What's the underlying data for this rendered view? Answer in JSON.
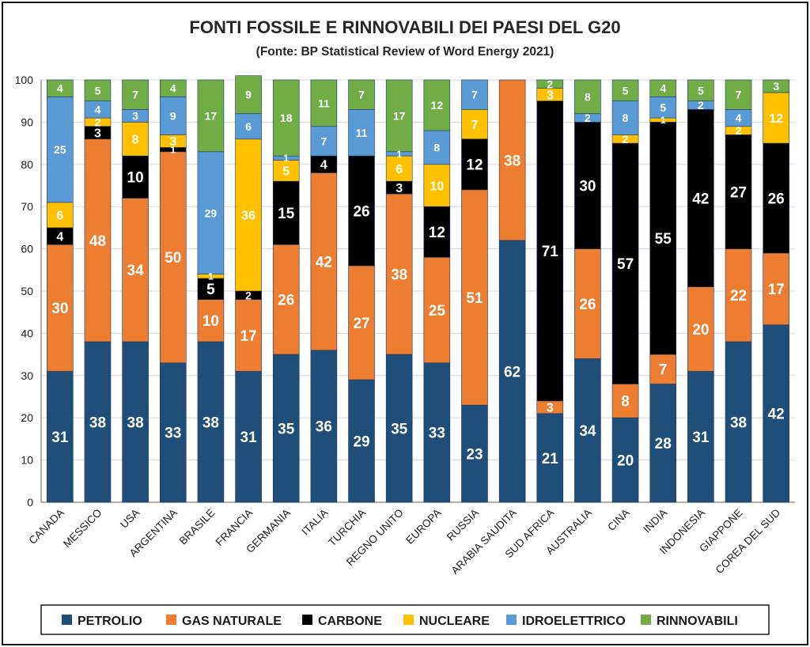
{
  "chart_data": {
    "type": "bar",
    "stacked": true,
    "title": "FONTI FOSSILE E RINNOVABILI DEI PAESI DEL G20",
    "subtitle": "(Fonte: BP Statistical Review of Word Energy 2021)",
    "ylim": [
      0,
      100
    ],
    "yticks": [
      0,
      10,
      20,
      30,
      40,
      50,
      60,
      70,
      80,
      90,
      100
    ],
    "grid": true,
    "legend_position": "bottom",
    "categories": [
      "CANADA",
      "MESSICO",
      "USA",
      "ARGENTINA",
      "BRASILE",
      "FRANCIA",
      "GERMANIA",
      "ITALIA",
      "TURCHIA",
      "REGNO UNITO",
      "EUROPA",
      "RUSSIA",
      "ARABIA SAUDITA",
      "SUD AFRICA",
      "AUSTRALIA",
      "CINA",
      "INDIA",
      "INDONESIA",
      "GIAPPONE",
      "COREA DEL SUD"
    ],
    "series": [
      {
        "name": "PETROLIO",
        "color": "#1f4e79",
        "values": [
          31,
          38,
          38,
          33,
          38,
          31,
          35,
          36,
          29,
          35,
          33,
          23,
          62,
          21,
          34,
          20,
          28,
          31,
          38,
          42
        ]
      },
      {
        "name": "GAS NATURALE",
        "color": "#ed7d31",
        "values": [
          30,
          48,
          34,
          50,
          10,
          17,
          26,
          42,
          27,
          38,
          25,
          51,
          38,
          3,
          26,
          8,
          7,
          20,
          22,
          17
        ]
      },
      {
        "name": "CARBONE",
        "color": "#000000",
        "values": [
          4,
          3,
          10,
          1,
          5,
          2,
          15,
          4,
          26,
          3,
          12,
          12,
          null,
          71,
          30,
          57,
          55,
          42,
          27,
          26
        ]
      },
      {
        "name": "NUCLEARE",
        "color": "#ffc000",
        "values": [
          6,
          2,
          8,
          3,
          1,
          36,
          5,
          null,
          null,
          6,
          10,
          7,
          null,
          3,
          null,
          2,
          1,
          null,
          2,
          12
        ]
      },
      {
        "name": "IDROELETTRICO",
        "color": "#5b9bd5",
        "values": [
          25,
          4,
          3,
          9,
          29,
          6,
          1,
          7,
          11,
          1,
          8,
          7,
          null,
          null,
          2,
          8,
          5,
          2,
          4,
          null
        ]
      },
      {
        "name": "RINNOVABILI",
        "color": "#70ad47",
        "values": [
          4,
          5,
          7,
          4,
          17,
          9,
          18,
          11,
          7,
          17,
          12,
          null,
          null,
          2,
          8,
          5,
          4,
          5,
          7,
          3
        ]
      }
    ],
    "axis_color": "#7f7f7f",
    "grid_color": "#d9d9d9"
  }
}
